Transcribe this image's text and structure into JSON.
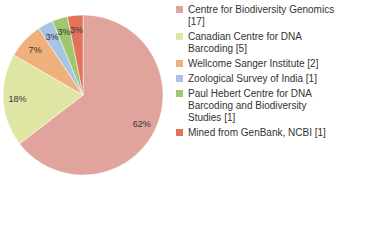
{
  "chart_data": {
    "type": "pie",
    "categories": [
      "Centre for Biodiversity Genomics [17]",
      "Canadian Centre for DNA Barcoding [5]",
      "Wellcome Sanger Institute [2]",
      "Zoological Survey of India [1]",
      "Paul Hebert Centre for DNA Barcoding and Biodiversity Studies [1]",
      "Mined from GenBank, NCBI [1]"
    ],
    "values": [
      62,
      18,
      7,
      3,
      3,
      3
    ],
    "value_labels": [
      "62%",
      "18%",
      "7%",
      "3%",
      "3%",
      "3%"
    ],
    "colors": [
      "#e0a49c",
      "#dfe6a3",
      "#f0b07c",
      "#a9c3e3",
      "#9ec86f",
      "#e2735a"
    ],
    "data_labels": true,
    "legend": "top-right"
  }
}
